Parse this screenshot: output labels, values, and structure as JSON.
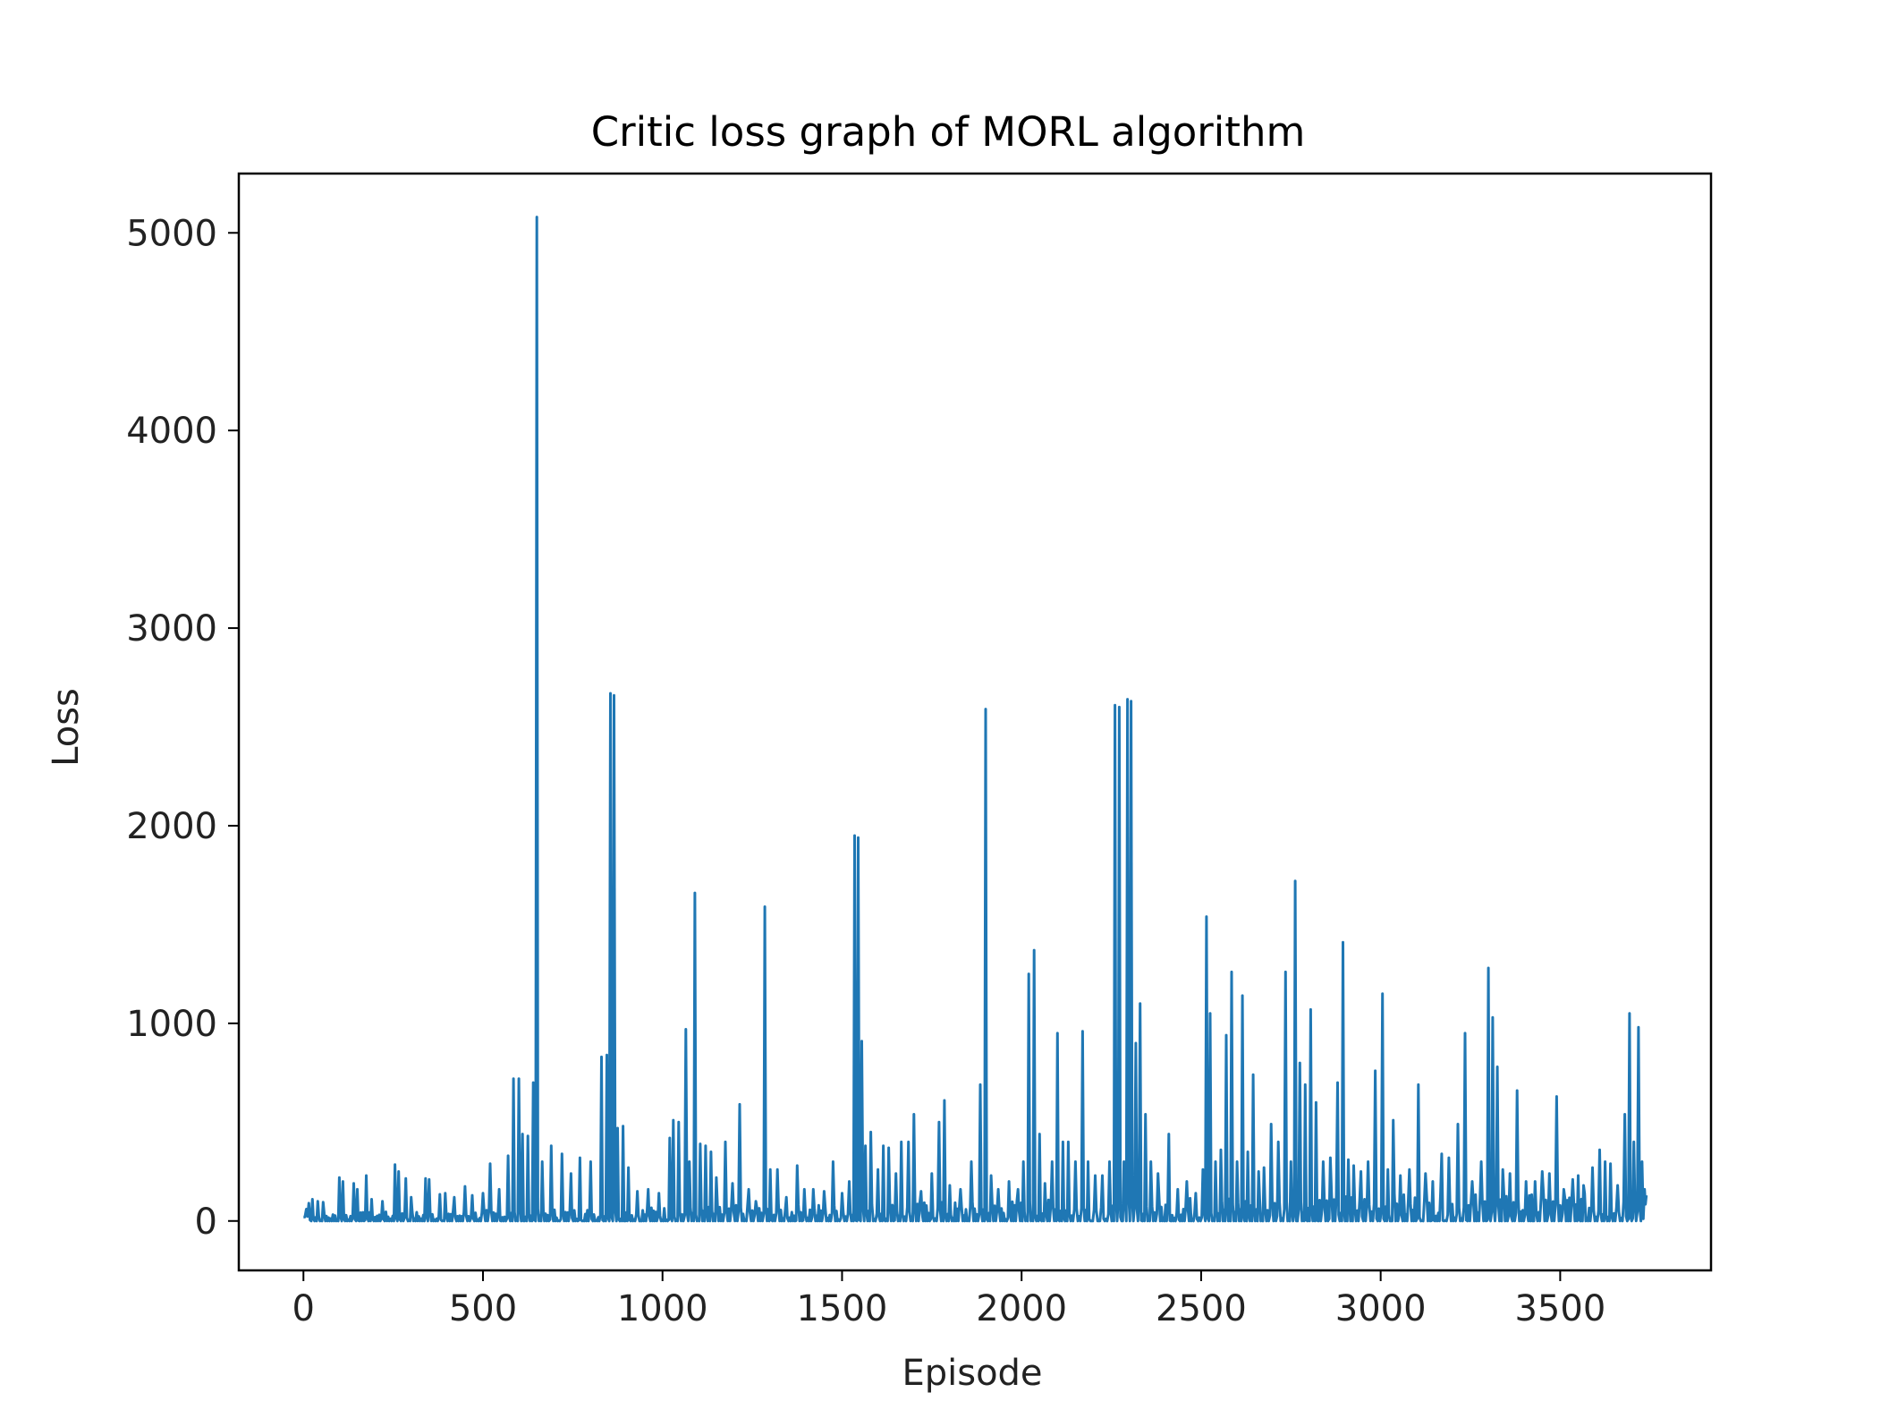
{
  "chart_data": {
    "type": "line",
    "title": "Critic loss graph of MORL algorithm",
    "xlabel": "Episode",
    "ylabel": "Loss",
    "xlim": [
      -180,
      3920
    ],
    "ylim": [
      -250,
      5300
    ],
    "x_ticks": [
      0,
      500,
      1000,
      1500,
      2000,
      2500,
      3000,
      3500
    ],
    "y_ticks": [
      0,
      1000,
      2000,
      3000,
      4000,
      5000
    ],
    "grid": false,
    "legend": "none",
    "series": [
      {
        "color": "#1f77b4",
        "points": [
          [
            0,
            20
          ],
          [
            8,
            60
          ],
          [
            15,
            90
          ],
          [
            25,
            110
          ],
          [
            40,
            100
          ],
          [
            55,
            95
          ],
          [
            100,
            220
          ],
          [
            110,
            200
          ],
          [
            140,
            190
          ],
          [
            150,
            160
          ],
          [
            175,
            230
          ],
          [
            190,
            110
          ],
          [
            220,
            100
          ],
          [
            255,
            285
          ],
          [
            265,
            250
          ],
          [
            285,
            215
          ],
          [
            300,
            120
          ],
          [
            340,
            215
          ],
          [
            350,
            210
          ],
          [
            380,
            135
          ],
          [
            395,
            140
          ],
          [
            420,
            120
          ],
          [
            450,
            175
          ],
          [
            470,
            130
          ],
          [
            500,
            140
          ],
          [
            520,
            290
          ],
          [
            545,
            160
          ],
          [
            570,
            330
          ],
          [
            585,
            720
          ],
          [
            600,
            720
          ],
          [
            610,
            440
          ],
          [
            625,
            430
          ],
          [
            640,
            700
          ],
          [
            650,
            5080
          ],
          [
            665,
            300
          ],
          [
            690,
            380
          ],
          [
            720,
            340
          ],
          [
            745,
            240
          ],
          [
            770,
            320
          ],
          [
            800,
            300
          ],
          [
            830,
            830
          ],
          [
            845,
            840
          ],
          [
            855,
            2670
          ],
          [
            865,
            2660
          ],
          [
            875,
            470
          ],
          [
            890,
            480
          ],
          [
            905,
            270
          ],
          [
            930,
            150
          ],
          [
            960,
            160
          ],
          [
            990,
            140
          ],
          [
            1020,
            420
          ],
          [
            1030,
            510
          ],
          [
            1045,
            500
          ],
          [
            1065,
            970
          ],
          [
            1075,
            300
          ],
          [
            1090,
            1660
          ],
          [
            1105,
            390
          ],
          [
            1120,
            380
          ],
          [
            1135,
            350
          ],
          [
            1150,
            220
          ],
          [
            1175,
            400
          ],
          [
            1195,
            190
          ],
          [
            1215,
            590
          ],
          [
            1240,
            160
          ],
          [
            1260,
            100
          ],
          [
            1285,
            1590
          ],
          [
            1300,
            260
          ],
          [
            1320,
            260
          ],
          [
            1345,
            120
          ],
          [
            1375,
            280
          ],
          [
            1395,
            160
          ],
          [
            1420,
            160
          ],
          [
            1450,
            150
          ],
          [
            1475,
            300
          ],
          [
            1500,
            140
          ],
          [
            1520,
            200
          ],
          [
            1535,
            1950
          ],
          [
            1545,
            1940
          ],
          [
            1555,
            910
          ],
          [
            1565,
            380
          ],
          [
            1580,
            450
          ],
          [
            1600,
            260
          ],
          [
            1615,
            380
          ],
          [
            1630,
            370
          ],
          [
            1650,
            240
          ],
          [
            1665,
            400
          ],
          [
            1685,
            400
          ],
          [
            1700,
            540
          ],
          [
            1720,
            150
          ],
          [
            1750,
            240
          ],
          [
            1770,
            500
          ],
          [
            1785,
            610
          ],
          [
            1800,
            180
          ],
          [
            1830,
            160
          ],
          [
            1860,
            300
          ],
          [
            1885,
            690
          ],
          [
            1900,
            2590
          ],
          [
            1915,
            230
          ],
          [
            1935,
            160
          ],
          [
            1965,
            200
          ],
          [
            1990,
            160
          ],
          [
            2005,
            300
          ],
          [
            2020,
            1250
          ],
          [
            2035,
            1370
          ],
          [
            2050,
            440
          ],
          [
            2065,
            190
          ],
          [
            2085,
            300
          ],
          [
            2100,
            950
          ],
          [
            2115,
            400
          ],
          [
            2130,
            400
          ],
          [
            2150,
            300
          ],
          [
            2170,
            960
          ],
          [
            2185,
            300
          ],
          [
            2205,
            230
          ],
          [
            2225,
            230
          ],
          [
            2245,
            300
          ],
          [
            2260,
            2610
          ],
          [
            2272,
            2600
          ],
          [
            2285,
            300
          ],
          [
            2295,
            2640
          ],
          [
            2305,
            2630
          ],
          [
            2318,
            900
          ],
          [
            2330,
            1100
          ],
          [
            2345,
            540
          ],
          [
            2360,
            300
          ],
          [
            2380,
            240
          ],
          [
            2410,
            440
          ],
          [
            2435,
            160
          ],
          [
            2460,
            200
          ],
          [
            2485,
            140
          ],
          [
            2505,
            260
          ],
          [
            2515,
            1540
          ],
          [
            2525,
            1050
          ],
          [
            2540,
            300
          ],
          [
            2555,
            360
          ],
          [
            2570,
            940
          ],
          [
            2585,
            1260
          ],
          [
            2600,
            300
          ],
          [
            2615,
            1140
          ],
          [
            2630,
            350
          ],
          [
            2645,
            740
          ],
          [
            2660,
            250
          ],
          [
            2675,
            270
          ],
          [
            2695,
            490
          ],
          [
            2715,
            400
          ],
          [
            2735,
            1260
          ],
          [
            2750,
            300
          ],
          [
            2762,
            1720
          ],
          [
            2775,
            800
          ],
          [
            2790,
            690
          ],
          [
            2805,
            1070
          ],
          [
            2820,
            600
          ],
          [
            2840,
            300
          ],
          [
            2860,
            320
          ],
          [
            2880,
            700
          ],
          [
            2895,
            1410
          ],
          [
            2910,
            310
          ],
          [
            2925,
            280
          ],
          [
            2945,
            250
          ],
          [
            2965,
            300
          ],
          [
            2985,
            760
          ],
          [
            3005,
            1150
          ],
          [
            3020,
            260
          ],
          [
            3035,
            510
          ],
          [
            3055,
            230
          ],
          [
            3080,
            260
          ],
          [
            3105,
            690
          ],
          [
            3125,
            240
          ],
          [
            3145,
            200
          ],
          [
            3170,
            340
          ],
          [
            3190,
            320
          ],
          [
            3215,
            490
          ],
          [
            3235,
            950
          ],
          [
            3255,
            200
          ],
          [
            3280,
            300
          ],
          [
            3300,
            1280
          ],
          [
            3312,
            1030
          ],
          [
            3325,
            780
          ],
          [
            3340,
            260
          ],
          [
            3360,
            240
          ],
          [
            3380,
            660
          ],
          [
            3405,
            200
          ],
          [
            3430,
            200
          ],
          [
            3450,
            250
          ],
          [
            3470,
            240
          ],
          [
            3490,
            630
          ],
          [
            3510,
            160
          ],
          [
            3535,
            210
          ],
          [
            3550,
            230
          ],
          [
            3565,
            180
          ],
          [
            3590,
            270
          ],
          [
            3610,
            360
          ],
          [
            3625,
            300
          ],
          [
            3640,
            290
          ],
          [
            3660,
            180
          ],
          [
            3680,
            540
          ],
          [
            3693,
            1050
          ],
          [
            3705,
            400
          ],
          [
            3718,
            980
          ],
          [
            3728,
            300
          ],
          [
            3735,
            160
          ],
          [
            3740,
            130
          ]
        ]
      }
    ]
  }
}
